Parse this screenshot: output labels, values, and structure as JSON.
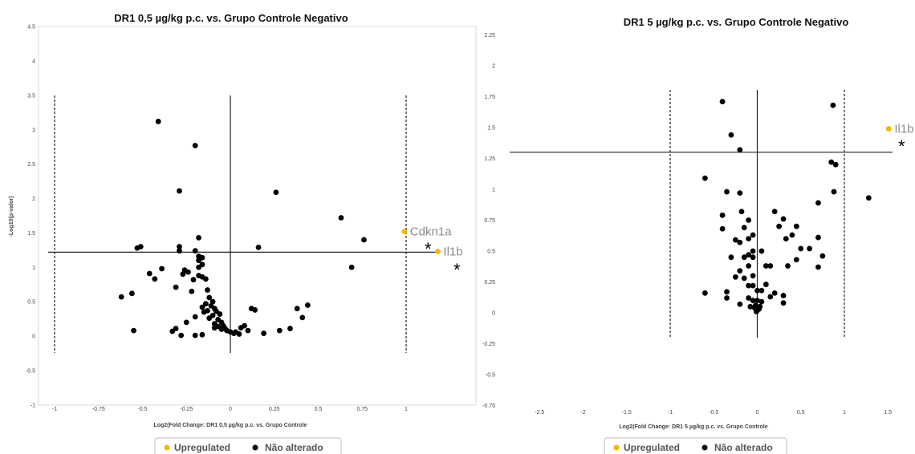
{
  "colors": {
    "upregulated": "#f5b700",
    "not_altered": "#000000"
  },
  "chart_data": [
    {
      "type": "scatter",
      "title": "DR1 0,5 µg/kg p.c.  vs. Grupo Controle Negativo",
      "xlabel": "Log2(Fold Change: DR1 0,5 µg/kg p.c.  vs. Grupo Controle",
      "ylabel": "-Log10(p-valor)",
      "xlim": [
        -1.05,
        1.25
      ],
      "ylim": [
        -1,
        4.5
      ],
      "xticks": [
        -1,
        -0.75,
        -0.5,
        -0.25,
        0,
        0.25,
        0.5,
        0.75,
        1
      ],
      "xtick_labels": [
        "-1",
        "-0.75",
        "-0.5",
        "-0.25",
        "0",
        "0.25",
        "0.5",
        "0.75",
        "1"
      ],
      "yticks": [
        -1,
        -0.5,
        0,
        0.5,
        1,
        1.5,
        2,
        2.5,
        3,
        3.5,
        4,
        4.5
      ],
      "ytick_labels": [
        "-1",
        "-0.5",
        "0",
        "0.5",
        "1",
        "1.5",
        "2",
        "2.5",
        "3",
        "3.5",
        "4",
        "4.5"
      ],
      "threshold_y": 1.22,
      "fold_lines_x": [
        -1,
        1
      ],
      "legend": [
        "Upregulated",
        "Não alterado"
      ],
      "legend_position": "bottom",
      "significance_mark": "*",
      "upregulated": [
        {
          "gene": "Cdkn1a",
          "x": 0.99,
          "y": 1.52
        },
        {
          "gene": "Il1b",
          "x": 1.18,
          "y": 1.23
        }
      ],
      "not_altered": [
        [
          -0.41,
          3.12
        ],
        [
          -0.2,
          2.77
        ],
        [
          -0.29,
          2.11
        ],
        [
          0.26,
          2.09
        ],
        [
          0.63,
          1.72
        ],
        [
          0.76,
          1.4
        ],
        [
          -0.53,
          1.28
        ],
        [
          -0.51,
          1.3
        ],
        [
          -0.29,
          1.3
        ],
        [
          -0.29,
          1.24
        ],
        [
          -0.2,
          1.24
        ],
        [
          -0.18,
          1.43
        ],
        [
          0.16,
          1.29
        ],
        [
          0.69,
          1.0
        ],
        [
          -0.18,
          1.16
        ],
        [
          -0.16,
          1.14
        ],
        [
          -0.18,
          1.1
        ],
        [
          -0.16,
          1.04
        ],
        [
          -0.18,
          1.0
        ],
        [
          -0.26,
          0.96
        ],
        [
          -0.24,
          0.93
        ],
        [
          -0.27,
          0.9
        ],
        [
          -0.18,
          0.88
        ],
        [
          -0.16,
          0.86
        ],
        [
          -0.14,
          0.83
        ],
        [
          -0.21,
          0.82
        ],
        [
          -0.39,
          0.98
        ],
        [
          -0.46,
          0.91
        ],
        [
          -0.43,
          0.83
        ],
        [
          -0.62,
          0.57
        ],
        [
          -0.56,
          0.62
        ],
        [
          -0.31,
          0.71
        ],
        [
          -0.22,
          0.65
        ],
        [
          -0.13,
          0.67
        ],
        [
          -0.12,
          0.56
        ],
        [
          -0.1,
          0.5
        ],
        [
          -0.14,
          0.47
        ],
        [
          -0.11,
          0.44
        ],
        [
          -0.16,
          0.42
        ],
        [
          -0.09,
          0.4
        ],
        [
          -0.13,
          0.37
        ],
        [
          -0.08,
          0.36
        ],
        [
          -0.06,
          0.32
        ],
        [
          -0.15,
          0.35
        ],
        [
          -0.1,
          0.3
        ],
        [
          -0.12,
          0.26
        ],
        [
          -0.2,
          0.28
        ],
        [
          -0.07,
          0.24
        ],
        [
          -0.05,
          0.2
        ],
        [
          -0.09,
          0.18
        ],
        [
          -0.04,
          0.15
        ],
        [
          -0.07,
          0.14
        ],
        [
          -0.03,
          0.11
        ],
        [
          -0.05,
          0.1
        ],
        [
          -0.09,
          0.12
        ],
        [
          -0.02,
          0.08
        ],
        [
          0.0,
          0.06
        ],
        [
          0.02,
          0.04
        ],
        [
          0.05,
          0.03
        ],
        [
          0.03,
          0.06
        ],
        [
          0.06,
          0.12
        ],
        [
          0.08,
          0.15
        ],
        [
          0.1,
          0.08
        ],
        [
          0.12,
          0.4
        ],
        [
          0.14,
          0.38
        ],
        [
          0.19,
          0.04
        ],
        [
          0.28,
          0.08
        ],
        [
          0.34,
          0.11
        ],
        [
          0.38,
          0.4
        ],
        [
          0.41,
          0.27
        ],
        [
          0.44,
          0.45
        ],
        [
          -0.55,
          0.08
        ],
        [
          -0.33,
          0.07
        ],
        [
          -0.31,
          0.11
        ],
        [
          -0.28,
          0.01
        ],
        [
          -0.2,
          0.01
        ],
        [
          -0.16,
          0.02
        ],
        [
          -0.25,
          0.2
        ]
      ]
    },
    {
      "type": "scatter",
      "title": "DR1 5 µg/kg p.c.  vs. Grupo Controle Negativo",
      "xlabel": "Log2(Fold Change: DR1 5 µg/kg p.c.  vs. Grupo Controle",
      "ylabel": "",
      "xlim": [
        -2.9,
        1.65
      ],
      "ylim": [
        -0.75,
        2.25
      ],
      "xticks": [
        -2.5,
        -2,
        -1.5,
        -1,
        -0.5,
        0,
        0.5,
        1,
        1.5
      ],
      "xtick_labels": [
        "-2.5",
        "-2",
        "-1.5",
        "-1",
        "-0.5",
        "0",
        "0.5",
        "1",
        "1.5"
      ],
      "yticks": [
        -0.75,
        -0.5,
        -0.25,
        0,
        0.25,
        0.5,
        0.75,
        1,
        1.25,
        1.5,
        1.75,
        2,
        2.25
      ],
      "ytick_labels": [
        "-0.75",
        "-0.5",
        "-0.25",
        "0",
        "0.25",
        "0.5",
        "0.75",
        "1",
        "1.25",
        "1.5",
        "1.75",
        "2",
        "2.25"
      ],
      "threshold_y": 1.3,
      "fold_lines_x": [
        -1,
        1
      ],
      "legend": [
        "Upregulated",
        "Não alterado"
      ],
      "legend_position": "bottom",
      "significance_mark": "*",
      "upregulated": [
        {
          "gene": "Il1b",
          "x": 1.51,
          "y": 1.49
        }
      ],
      "not_altered": [
        [
          -0.4,
          1.71
        ],
        [
          0.87,
          1.68
        ],
        [
          -0.3,
          1.44
        ],
        [
          -0.2,
          1.32
        ],
        [
          0.85,
          1.22
        ],
        [
          0.9,
          1.2
        ],
        [
          -0.6,
          1.09
        ],
        [
          -0.35,
          0.98
        ],
        [
          -0.2,
          0.97
        ],
        [
          0.88,
          0.98
        ],
        [
          1.28,
          0.93
        ],
        [
          0.7,
          0.89
        ],
        [
          -0.4,
          0.79
        ],
        [
          -0.18,
          0.82
        ],
        [
          -0.1,
          0.75
        ],
        [
          -0.15,
          0.69
        ],
        [
          -0.05,
          0.63
        ],
        [
          0.2,
          0.82
        ],
        [
          0.3,
          0.76
        ],
        [
          0.25,
          0.7
        ],
        [
          0.45,
          0.7
        ],
        [
          0.4,
          0.63
        ],
        [
          0.33,
          0.6
        ],
        [
          0.7,
          0.61
        ],
        [
          0.6,
          0.52
        ],
        [
          -0.4,
          0.68
        ],
        [
          -0.25,
          0.59
        ],
        [
          -0.2,
          0.57
        ],
        [
          -0.3,
          0.45
        ],
        [
          -0.1,
          0.47
        ],
        [
          -0.05,
          0.5
        ],
        [
          0.15,
          0.38
        ],
        [
          0.05,
          0.5
        ],
        [
          0.1,
          0.38
        ],
        [
          0.45,
          0.43
        ],
        [
          0.35,
          0.38
        ],
        [
          0.75,
          0.46
        ],
        [
          0.7,
          0.37
        ],
        [
          -0.15,
          0.45
        ],
        [
          -0.05,
          0.45
        ],
        [
          -0.1,
          0.38
        ],
        [
          -0.2,
          0.34
        ],
        [
          -0.15,
          0.28
        ],
        [
          -0.05,
          0.3
        ],
        [
          -0.25,
          0.29
        ],
        [
          -0.1,
          0.22
        ],
        [
          -0.05,
          0.22
        ],
        [
          0.1,
          0.23
        ],
        [
          -0.35,
          0.17
        ],
        [
          -0.6,
          0.16
        ],
        [
          0.0,
          0.18
        ],
        [
          0.05,
          0.18
        ],
        [
          0.2,
          0.16
        ],
        [
          0.15,
          0.13
        ],
        [
          0.3,
          0.14
        ],
        [
          -0.1,
          0.12
        ],
        [
          -0.05,
          0.1
        ],
        [
          0.0,
          0.1
        ],
        [
          0.05,
          0.09
        ],
        [
          -0.35,
          0.12
        ],
        [
          -0.2,
          0.07
        ],
        [
          0.3,
          0.08
        ],
        [
          -0.08,
          0.05
        ],
        [
          -0.03,
          0.04
        ],
        [
          0.0,
          0.02
        ],
        [
          0.02,
          0.03
        ],
        [
          -0.02,
          0.06
        ],
        [
          0.0,
          0.04
        ],
        [
          -0.01,
          0.01
        ],
        [
          0.03,
          0.05
        ],
        [
          -0.1,
          0.6
        ],
        [
          0.5,
          0.52
        ]
      ]
    }
  ]
}
